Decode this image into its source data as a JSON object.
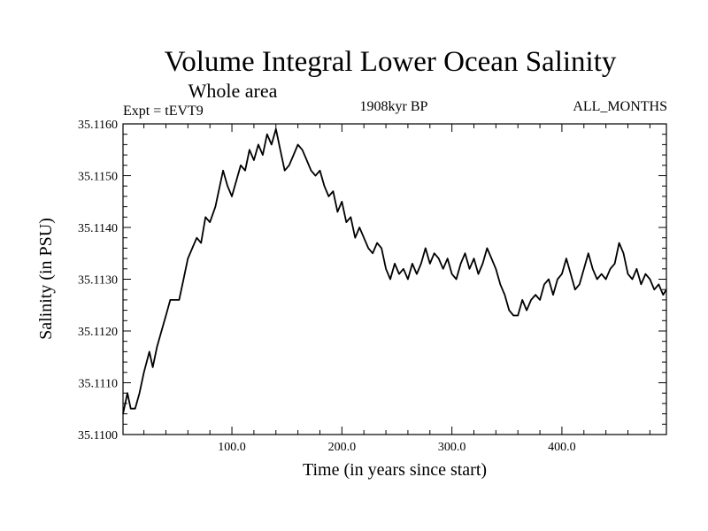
{
  "chart_data": {
    "type": "line",
    "title": "Volume Integral Lower Ocean Salinity",
    "subtitle": "Whole area",
    "experiment": "Expt = tEVT9",
    "period": "1908kyr BP",
    "months": "ALL_MONTHS",
    "xlabel": "Time (in years since start)",
    "ylabel": "Salinity (in PSU)",
    "xlim": [
      1,
      495
    ],
    "ylim": [
      35.11,
      35.116
    ],
    "xticks": [
      100,
      200,
      300,
      400
    ],
    "xtick_labels": [
      "100.0",
      "200.0",
      "300.0",
      "400.0"
    ],
    "yticks": [
      35.11,
      35.111,
      35.112,
      35.113,
      35.114,
      35.115,
      35.116
    ],
    "ytick_labels": [
      "35.1100",
      "35.1110",
      "35.1120",
      "35.1130",
      "35.1140",
      "35.1150",
      "35.1160"
    ],
    "series": [
      {
        "name": "Salinity",
        "x": [
          1,
          5,
          8,
          12,
          16,
          20,
          25,
          28,
          32,
          36,
          40,
          44,
          48,
          52,
          56,
          60,
          64,
          68,
          72,
          76,
          80,
          85,
          88,
          92,
          96,
          100,
          104,
          108,
          112,
          116,
          120,
          124,
          128,
          132,
          136,
          140,
          144,
          148,
          152,
          156,
          160,
          164,
          168,
          172,
          176,
          180,
          184,
          188,
          192,
          196,
          200,
          204,
          208,
          212,
          216,
          220,
          224,
          228,
          232,
          236,
          240,
          244,
          248,
          252,
          256,
          260,
          264,
          268,
          272,
          276,
          280,
          284,
          288,
          292,
          296,
          300,
          304,
          308,
          312,
          316,
          320,
          324,
          328,
          332,
          336,
          340,
          344,
          348,
          352,
          356,
          360,
          364,
          368,
          372,
          376,
          380,
          384,
          388,
          392,
          396,
          400,
          404,
          408,
          412,
          416,
          420,
          424,
          428,
          432,
          436,
          440,
          444,
          448,
          452,
          456,
          460,
          464,
          468,
          472,
          476,
          480,
          484,
          488,
          492,
          495
        ],
        "values": [
          35.1104,
          35.1108,
          35.1105,
          35.1105,
          35.1108,
          35.1112,
          35.1116,
          35.1113,
          35.1117,
          35.112,
          35.1123,
          35.1126,
          35.1126,
          35.1126,
          35.113,
          35.1134,
          35.1136,
          35.1138,
          35.1137,
          35.1142,
          35.1141,
          35.1144,
          35.1147,
          35.1151,
          35.1148,
          35.1146,
          35.1149,
          35.1152,
          35.1151,
          35.1155,
          35.1153,
          35.1156,
          35.1154,
          35.1158,
          35.1156,
          35.1159,
          35.1155,
          35.1151,
          35.1152,
          35.1154,
          35.1156,
          35.1155,
          35.1153,
          35.1151,
          35.115,
          35.1151,
          35.1148,
          35.1146,
          35.1147,
          35.1143,
          35.1145,
          35.1141,
          35.1142,
          35.1138,
          35.114,
          35.1138,
          35.1136,
          35.1135,
          35.1137,
          35.1136,
          35.1132,
          35.113,
          35.1133,
          35.1131,
          35.1132,
          35.113,
          35.1133,
          35.1131,
          35.1133,
          35.1136,
          35.1133,
          35.1135,
          35.1134,
          35.1132,
          35.1134,
          35.1131,
          35.113,
          35.1133,
          35.1135,
          35.1132,
          35.1134,
          35.1131,
          35.1133,
          35.1136,
          35.1134,
          35.1132,
          35.1129,
          35.1127,
          35.1124,
          35.1123,
          35.1123,
          35.1126,
          35.1124,
          35.1126,
          35.1127,
          35.1126,
          35.1129,
          35.113,
          35.1127,
          35.113,
          35.1131,
          35.1134,
          35.1131,
          35.1128,
          35.1129,
          35.1132,
          35.1135,
          35.1132,
          35.113,
          35.1131,
          35.113,
          35.1132,
          35.1133,
          35.1137,
          35.1135,
          35.1131,
          35.113,
          35.1132,
          35.1129,
          35.1131,
          35.113,
          35.1128,
          35.1129,
          35.1127,
          35.1128
        ]
      }
    ]
  }
}
